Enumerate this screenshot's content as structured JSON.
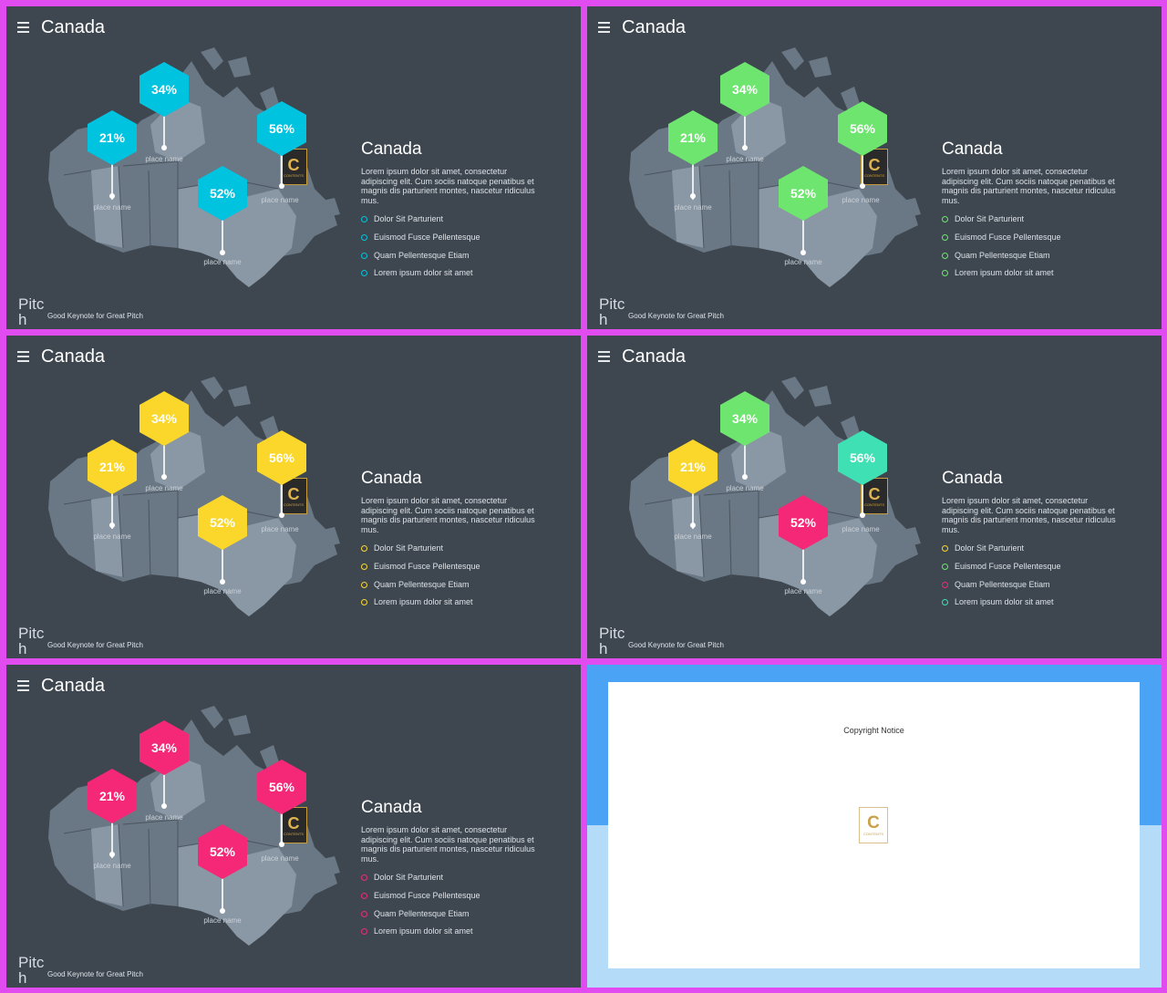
{
  "slide_title": "Canada",
  "right_title": "Canada",
  "body_text": "Lorem ipsum dolor sit amet, consectetur adipiscing elit. Cum sociis natoque penatibus et magnis dis parturient montes, nascetur ridiculus mus.",
  "bullets": [
    "Dolor Sit Parturient",
    "Euismod Fusce Pellentesque",
    "Quam Pellentesque Etiam",
    "Lorem ipsum dolor sit amet"
  ],
  "markers": [
    "21%",
    "34%",
    "52%",
    "56%"
  ],
  "place_label": "place name",
  "brand": "Pitch",
  "tagline": "Good Keynote for Great Pitch",
  "logo_letter": "C",
  "logo_text": "CONTENTS",
  "copyright": "Copyright Notice",
  "colors": {
    "cyan": "#00c3e0",
    "green": "#6ee56f",
    "yellow": "#fad72a",
    "pink": "#f42877",
    "teal": "#3fe0b3",
    "map_dark": "#6a7784",
    "map_light": "#8a97a4",
    "bg": "#3e4750"
  },
  "slide_schemes": [
    [
      "cyan",
      "cyan",
      "cyan",
      "cyan"
    ],
    [
      "green",
      "green",
      "green",
      "green"
    ],
    [
      "yellow",
      "yellow",
      "yellow",
      "yellow"
    ],
    [
      "yellow",
      "green",
      "pink",
      "teal"
    ],
    [
      "pink",
      "pink",
      "pink",
      "pink"
    ]
  ]
}
